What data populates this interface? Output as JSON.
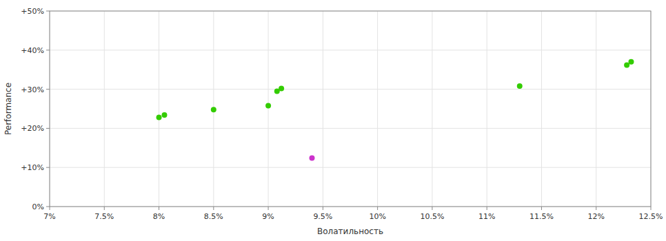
{
  "chart_data": {
    "type": "scatter",
    "x_label": "Волатильность",
    "y_label": "Performance",
    "xlim": [
      0.07,
      0.125
    ],
    "ylim": [
      0.0,
      0.5
    ],
    "xticks": [
      {
        "value": 0.07,
        "label": "7%"
      },
      {
        "value": 0.075,
        "label": "7.5%"
      },
      {
        "value": 0.08,
        "label": "8%"
      },
      {
        "value": 0.085,
        "label": "8.5%"
      },
      {
        "value": 0.09,
        "label": "9%"
      },
      {
        "value": 0.095,
        "label": "9.5%"
      },
      {
        "value": 0.1,
        "label": "10%"
      },
      {
        "value": 0.105,
        "label": "10.5%"
      },
      {
        "value": 0.11,
        "label": "11%"
      },
      {
        "value": 0.115,
        "label": "11.5%"
      },
      {
        "value": 0.12,
        "label": "12%"
      },
      {
        "value": 0.125,
        "label": "12.5%"
      }
    ],
    "yticks": [
      {
        "value": 0.0,
        "label": "0%"
      },
      {
        "value": 0.1,
        "label": "+10%"
      },
      {
        "value": 0.2,
        "label": "+20%"
      },
      {
        "value": 0.3,
        "label": "+30%"
      },
      {
        "value": 0.4,
        "label": "+40%"
      },
      {
        "value": 0.5,
        "label": "+50%"
      }
    ],
    "grid": true,
    "series": [
      {
        "color": "#33cc00",
        "x": [
          0.08,
          0.0805,
          0.085,
          0.09,
          0.0908,
          0.0912,
          0.113,
          0.1228,
          0.1232
        ],
        "values": [
          0.228,
          0.234,
          0.248,
          0.258,
          0.295,
          0.302,
          0.308,
          0.362,
          0.37
        ]
      },
      {
        "color": "#cc33cc",
        "x": [
          0.094
        ],
        "values": [
          0.124
        ]
      }
    ]
  }
}
